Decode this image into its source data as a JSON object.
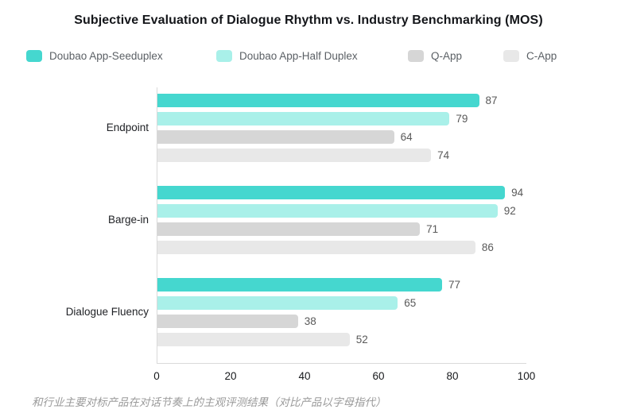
{
  "title": "Subjective Evaluation of Dialogue Rhythm vs. Industry Benchmarking (MOS)",
  "caption": "和行业主要对标产品在对话节奏上的主观评测结果（对比产品以字母指代）",
  "colors": {
    "series_1": "#45D7CF",
    "series_2": "#A9F0E9",
    "series_3": "#D6D6D6",
    "series_4": "#E8E8E8",
    "axis_line": "#D9D9D9",
    "value_label": "#595959",
    "tick_label": "#17191C",
    "category_label": "#202226",
    "legend_label": "#5B6065",
    "caption_text": "#9A9A9A",
    "title_text": "#14161A",
    "background": "#FFFFFF"
  },
  "legend": {
    "items": [
      {
        "label": "Doubao App-Seeduplex",
        "color": "#45D7CF"
      },
      {
        "label": "Doubao App-Half Duplex",
        "color": "#A9F0E9"
      },
      {
        "label": "Q-App",
        "color": "#D6D6D6"
      },
      {
        "label": "C-App",
        "color": "#E8E8E8"
      }
    ]
  },
  "chart_data": {
    "type": "bar",
    "orientation": "horizontal",
    "title": "Subjective Evaluation of Dialogue Rhythm vs. Industry Benchmarking (MOS)",
    "categories": [
      "Endpoint",
      "Barge-in",
      "Dialogue Fluency"
    ],
    "series": [
      {
        "name": "Doubao App-Seeduplex",
        "color": "#45D7CF",
        "values": [
          87,
          94,
          77
        ]
      },
      {
        "name": "Doubao App-Half Duplex",
        "color": "#A9F0E9",
        "values": [
          79,
          92,
          65
        ]
      },
      {
        "name": "Q-App",
        "color": "#D6D6D6",
        "values": [
          64,
          71,
          38
        ]
      },
      {
        "name": "C-App",
        "color": "#E8E8E8",
        "values": [
          74,
          86,
          52
        ]
      }
    ],
    "xlim": [
      0,
      100
    ],
    "xticks": [
      0,
      20,
      40,
      60,
      80,
      100
    ],
    "value_labels": true,
    "grid": false,
    "legend_position": "top",
    "xlabel": "",
    "ylabel": ""
  }
}
